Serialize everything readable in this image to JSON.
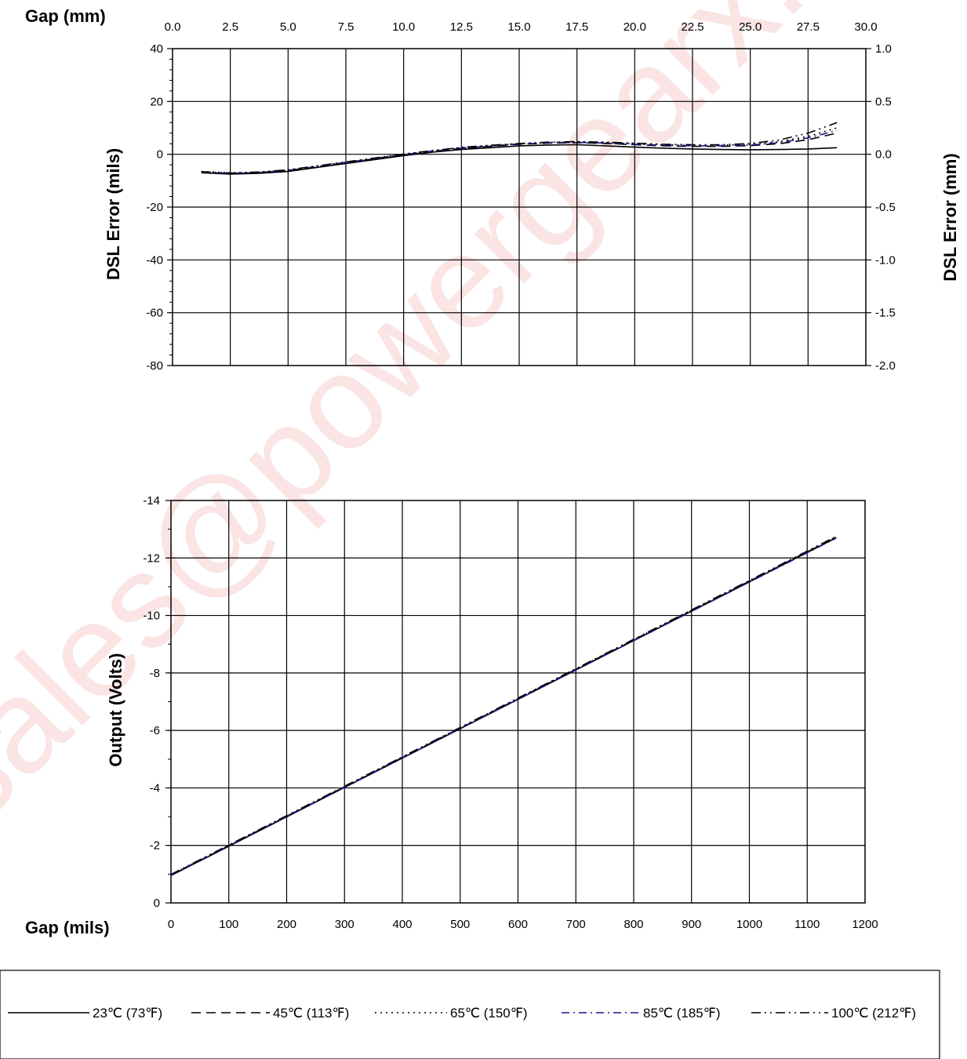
{
  "watermark": "sales@powergearx.com",
  "chart_data": [
    {
      "type": "line",
      "id": "error",
      "x_top_label": "Gap (mm)",
      "x_top_ticks": [
        "0.0",
        "2.5",
        "5.0",
        "7.5",
        "10.0",
        "12.5",
        "15.0",
        "17.5",
        "20.0",
        "22.5",
        "25.0",
        "27.5",
        "30.0"
      ],
      "xlim": [
        0,
        1200
      ],
      "ylim": [
        -80,
        40
      ],
      "y_ticks": [
        "40",
        "20",
        "0",
        "-20",
        "-40",
        "-60",
        "-80"
      ],
      "ylabel": "DSL Error (mils)",
      "y2lim": [
        -2.0,
        1.0
      ],
      "y2_ticks": [
        "1.0",
        "0.5",
        "0.0",
        "-0.5",
        "-1.0",
        "-1.5",
        "-2.0"
      ],
      "y2label": "DSL Error (mm)",
      "grid": true,
      "x": [
        50,
        100,
        150,
        200,
        250,
        300,
        350,
        400,
        450,
        500,
        550,
        600,
        650,
        700,
        750,
        800,
        850,
        900,
        950,
        1000,
        1050,
        1100,
        1150
      ],
      "series": [
        {
          "name": "23°C (73°F)",
          "color": "#000000",
          "dash": "",
          "values": [
            -7,
            -7.5,
            -7.2,
            -6.5,
            -5,
            -3.5,
            -2,
            -0.5,
            0.8,
            1.8,
            2.5,
            3.2,
            3.5,
            3.6,
            3.2,
            2.7,
            2.3,
            2.0,
            1.8,
            1.7,
            1.8,
            2.0,
            2.5
          ]
        },
        {
          "name": "45°C (113°F)",
          "color": "#000000",
          "dash": "12,7",
          "values": [
            -7,
            -7.3,
            -7,
            -6.2,
            -4.7,
            -3.2,
            -1.7,
            -0.2,
            1.1,
            2.2,
            3,
            3.8,
            4.2,
            4.4,
            4.1,
            3.6,
            3.2,
            3.0,
            3.0,
            3.3,
            4.0,
            5.5,
            8
          ]
        },
        {
          "name": "65°C (150°F)",
          "color": "#000000",
          "dash": "2,5",
          "values": [
            -6.5,
            -7,
            -6.8,
            -6,
            -4.5,
            -3,
            -1.5,
            0,
            1.3,
            2.5,
            3.3,
            4.0,
            4.5,
            4.7,
            4.4,
            4.0,
            3.6,
            3.4,
            3.4,
            3.8,
            4.8,
            6.8,
            10
          ]
        },
        {
          "name": "85°C (185°F)",
          "color": "#1a1a8c",
          "dash": "10,5,2,5",
          "values": [
            -6.8,
            -7.2,
            -6.9,
            -6.1,
            -4.6,
            -3.1,
            -1.6,
            -0.1,
            1.2,
            2.3,
            3.1,
            3.9,
            4.3,
            4.5,
            4.2,
            3.8,
            3.4,
            3.2,
            3.2,
            3.5,
            4.4,
            6.2,
            9
          ]
        },
        {
          "name": "100°C (212°F)",
          "color": "#000000",
          "dash": "12,5,2,5,2,5",
          "values": [
            -6.6,
            -7.1,
            -6.7,
            -5.9,
            -4.4,
            -2.9,
            -1.4,
            0.1,
            1.4,
            2.6,
            3.4,
            4.1,
            4.6,
            4.8,
            4.6,
            4.2,
            3.8,
            3.6,
            3.6,
            4.1,
            5.4,
            8,
            12
          ]
        }
      ]
    },
    {
      "type": "line",
      "id": "output",
      "xlabel": "Gap (mils)",
      "x_ticks": [
        "0",
        "100",
        "200",
        "300",
        "400",
        "500",
        "600",
        "700",
        "800",
        "900",
        "1000",
        "1100",
        "1200"
      ],
      "xlim": [
        0,
        1200
      ],
      "ylim": [
        0,
        -14
      ],
      "y_ticks": [
        "-14",
        "-12",
        "-10",
        "-8",
        "-6",
        "-4",
        "-2",
        "0"
      ],
      "ylabel": "Output (Volts)",
      "grid": true,
      "x": [
        0,
        1150
      ],
      "series": [
        {
          "name": "23°C (73°F)",
          "color": "#000000",
          "dash": "",
          "values": [
            -0.95,
            -12.7
          ]
        },
        {
          "name": "45°C (113°F)",
          "color": "#000000",
          "dash": "12,7",
          "values": [
            -0.97,
            -12.72
          ]
        },
        {
          "name": "65°C (150°F)",
          "color": "#000000",
          "dash": "2,5",
          "values": [
            -0.98,
            -12.73
          ]
        },
        {
          "name": "85°C (185°F)",
          "color": "#1a1a8c",
          "dash": "10,5,2,5",
          "values": [
            -0.96,
            -12.69
          ]
        },
        {
          "name": "100°C (212°F)",
          "color": "#000000",
          "dash": "12,5,2,5,2,5",
          "values": [
            -0.99,
            -12.75
          ]
        }
      ]
    }
  ],
  "legend": {
    "placement": "bottom",
    "items": [
      {
        "label": "23℃ (73℉)",
        "color": "#000000",
        "dash": ""
      },
      {
        "label": "45℃ (113℉)",
        "color": "#000000",
        "dash": "12,7"
      },
      {
        "label": "65℃ (150℉)",
        "color": "#000000",
        "dash": "2,5"
      },
      {
        "label": "85℃ (185℉)",
        "color": "#1a1a8c",
        "dash": "10,5,2,5"
      },
      {
        "label": "100℃ (212℉)",
        "color": "#000000",
        "dash": "12,5,2,5,2,5"
      }
    ]
  }
}
